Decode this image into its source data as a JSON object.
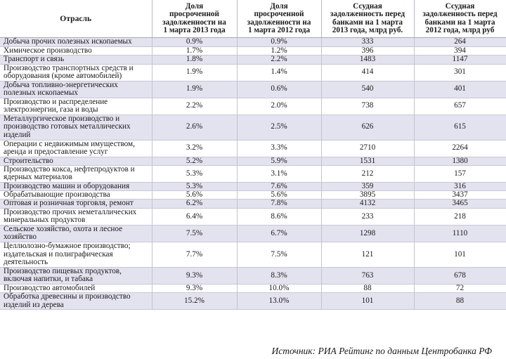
{
  "headers": [
    "Отрасль",
    "Доля\nпросроченной\nзадолженности на\n1 марта 2013 года",
    "Доля\nпросроченной\nзадолженности на\n1 марта 2012 года",
    "Ссудная\nзадолженность перед\nбанками на 1 марта\n2013 года, млрд руб.",
    "Ссудная\nзадолженность перед\nбанками на 1 марта\n2012 года, млрд руб"
  ],
  "rows": [
    {
      "name": "Добыча прочих полезных ископаемых",
      "share2013": "0.9%",
      "share2012": "0.9%",
      "debt2013": "333",
      "debt2012": "264"
    },
    {
      "name": "Химическое производство",
      "share2013": "1.7%",
      "share2012": "1.2%",
      "debt2013": "396",
      "debt2012": "394"
    },
    {
      "name": "Транспорт и связь",
      "share2013": "1.8%",
      "share2012": "2.2%",
      "debt2013": "1483",
      "debt2012": "1147"
    },
    {
      "name": "Производство транспортных средств и\nоборудования (кроме автомобилей)",
      "share2013": "1.9%",
      "share2012": "1.4%",
      "debt2013": "414",
      "debt2012": "301"
    },
    {
      "name": "Добыча топливно-энергетических\nполезных ископаемых",
      "share2013": "1.9%",
      "share2012": "0.6%",
      "debt2013": "540",
      "debt2012": "401"
    },
    {
      "name": "Производство и распределение\nэлектроэнергии, газа и воды",
      "share2013": "2.2%",
      "share2012": "2.0%",
      "debt2013": "738",
      "debt2012": "657"
    },
    {
      "name": "Металлургическое производство и\nпроизводство готовых металлических\nизделий",
      "share2013": "2.6%",
      "share2012": "2.5%",
      "debt2013": "626",
      "debt2012": "615"
    },
    {
      "name": "Операции с недвижимым имуществом,\nаренда и предоставление услуг",
      "share2013": "3.2%",
      "share2012": "3.3%",
      "debt2013": "2710",
      "debt2012": "2264"
    },
    {
      "name": "Строительство",
      "share2013": "5.2%",
      "share2012": "5.9%",
      "debt2013": "1531",
      "debt2012": "1380"
    },
    {
      "name": "Производство кокса, нефтепродуктов и\nядерных материалов",
      "share2013": "5.3%",
      "share2012": "3.1%",
      "debt2013": "212",
      "debt2012": "157"
    },
    {
      "name": "Производство машин и оборудования",
      "share2013": "5.3%",
      "share2012": "7.6%",
      "debt2013": "359",
      "debt2012": "316"
    },
    {
      "name": "Обрабатывающие производства",
      "share2013": "5.6%",
      "share2012": "5.6%",
      "debt2013": "3895",
      "debt2012": "3437"
    },
    {
      "name": "Оптовая и розничная торговля, ремонт",
      "share2013": "6.2%",
      "share2012": "7.8%",
      "debt2013": "4132",
      "debt2012": "3465"
    },
    {
      "name": "Производство прочих неметаллических\nминеральных продуктов",
      "share2013": "6.4%",
      "share2012": "8.6%",
      "debt2013": "233",
      "debt2012": "218"
    },
    {
      "name": "Сельское хозяйство, охота и лесное\nхозяйство",
      "share2013": "7.5%",
      "share2012": "6.7%",
      "debt2013": "1298",
      "debt2012": "1110"
    },
    {
      "name": "Целлюлозно-бумажное производство;\nиздательская и полиграфическая\nдеятельность",
      "share2013": "7.7%",
      "share2012": "7.5%",
      "debt2013": "121",
      "debt2012": "101"
    },
    {
      "name": "Производство пищевых продуктов,\nвключая напитки, и табака",
      "share2013": "9.3%",
      "share2012": "8.3%",
      "debt2013": "763",
      "debt2012": "678"
    },
    {
      "name": "Производство автомобилей",
      "share2013": "9.3%",
      "share2012": "10.0%",
      "debt2013": "88",
      "debt2012": "72"
    },
    {
      "name": "Обработка древесины и производство\nизделий из дерева",
      "share2013": "15.2%",
      "share2012": "13.0%",
      "debt2013": "101",
      "debt2012": "88"
    }
  ],
  "source": "Источник: РИА Рейтинг по данным Центробанка РФ"
}
